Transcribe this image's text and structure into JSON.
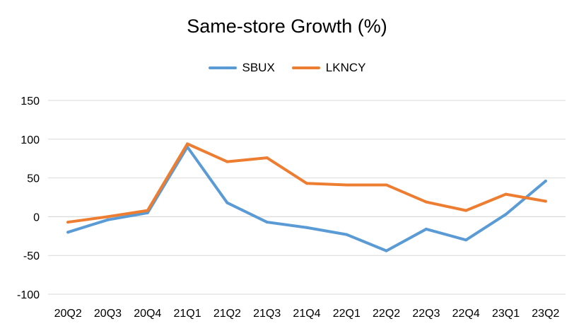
{
  "chart_data": {
    "type": "line",
    "title": "Same-store Growth (%)",
    "categories": [
      "20Q2",
      "20Q3",
      "20Q4",
      "21Q1",
      "21Q2",
      "21Q3",
      "21Q4",
      "22Q1",
      "22Q2",
      "22Q3",
      "22Q4",
      "23Q1",
      "23Q2"
    ],
    "series": [
      {
        "name": "SBUX",
        "color": "#5B9BD5",
        "values": [
          -20,
          -4,
          5,
          90,
          18,
          -7,
          -14,
          -23,
          -44,
          -16,
          -30,
          3,
          46
        ]
      },
      {
        "name": "LKNCY",
        "color": "#ED7D31",
        "values": [
          -7,
          0,
          8,
          94,
          71,
          76,
          43,
          41,
          41,
          19,
          8,
          29,
          20
        ]
      }
    ],
    "ylim": [
      -100,
      150
    ],
    "yticks": [
      -100,
      -50,
      0,
      50,
      100,
      150
    ],
    "grid": true,
    "legend_position": "top-center"
  }
}
